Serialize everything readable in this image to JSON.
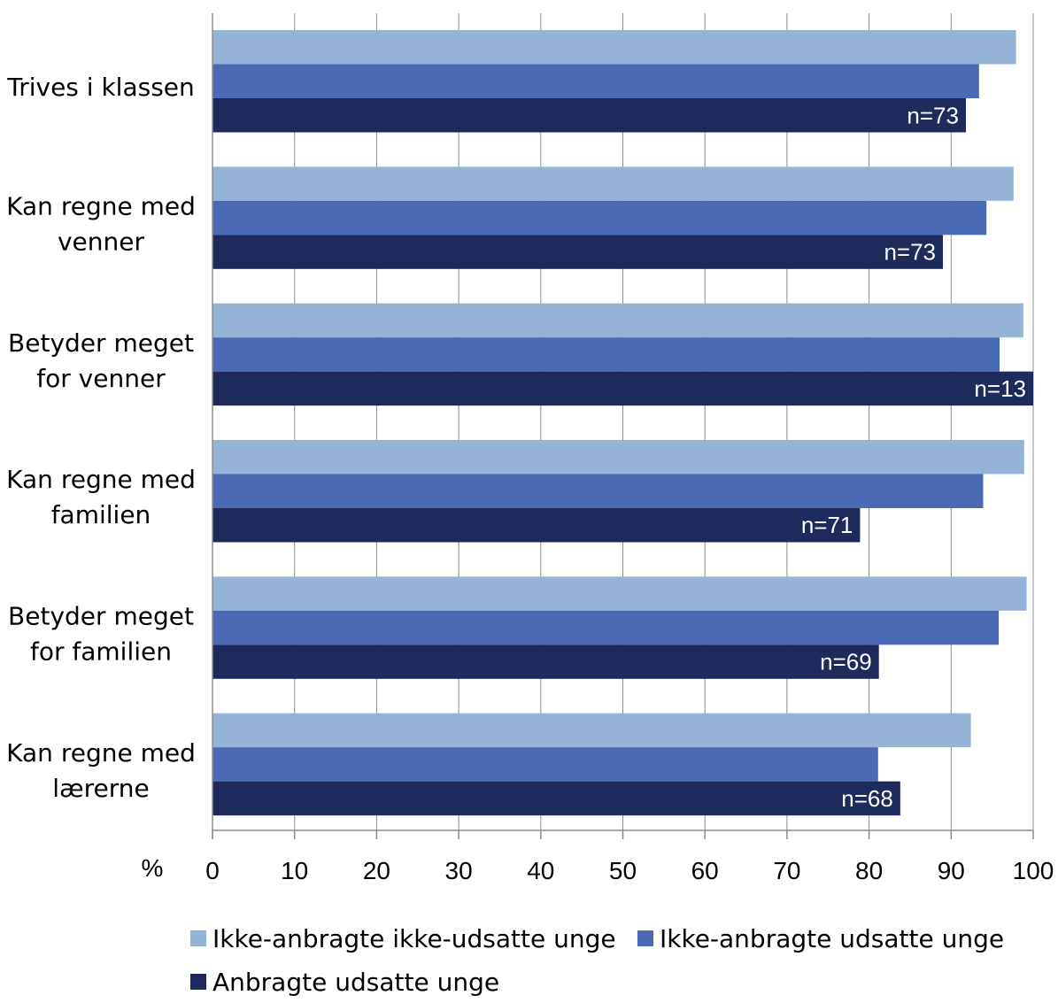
{
  "chart_data": {
    "type": "bar",
    "orientation": "horizontal",
    "xlabel": "%",
    "xlim": [
      0,
      100
    ],
    "xticks": [
      0,
      10,
      20,
      30,
      40,
      50,
      60,
      70,
      80,
      90,
      100
    ],
    "grid": "vertical",
    "legend_position": "bottom",
    "categories": [
      [
        "Trives i klassen"
      ],
      [
        "Kan regne med",
        "venner"
      ],
      [
        "Betyder meget",
        "for venner"
      ],
      [
        "Kan regne med",
        "familien"
      ],
      [
        "Betyder meget",
        "for familien"
      ],
      [
        "Kan regne med",
        "lærerne"
      ]
    ],
    "series": [
      {
        "name": "Ikke-anbragte ikke-udsatte unge",
        "color": "#95b3d7",
        "values": [
          97.9,
          97.6,
          98.8,
          98.9,
          99.2,
          92.4
        ]
      },
      {
        "name": "Ikke-anbragte udsatte unge",
        "color": "#4a6ab5",
        "values": [
          93.4,
          94.3,
          95.9,
          93.9,
          95.8,
          81.1
        ]
      },
      {
        "name": "Anbragte udsatte unge",
        "color": "#1f2a5c",
        "values": [
          91.8,
          89.0,
          100.0,
          78.9,
          81.2,
          83.8
        ]
      }
    ],
    "annotations": [
      "n=73",
      "n=73",
      "n=13",
      "n=71",
      "n=69",
      "n=68"
    ]
  }
}
